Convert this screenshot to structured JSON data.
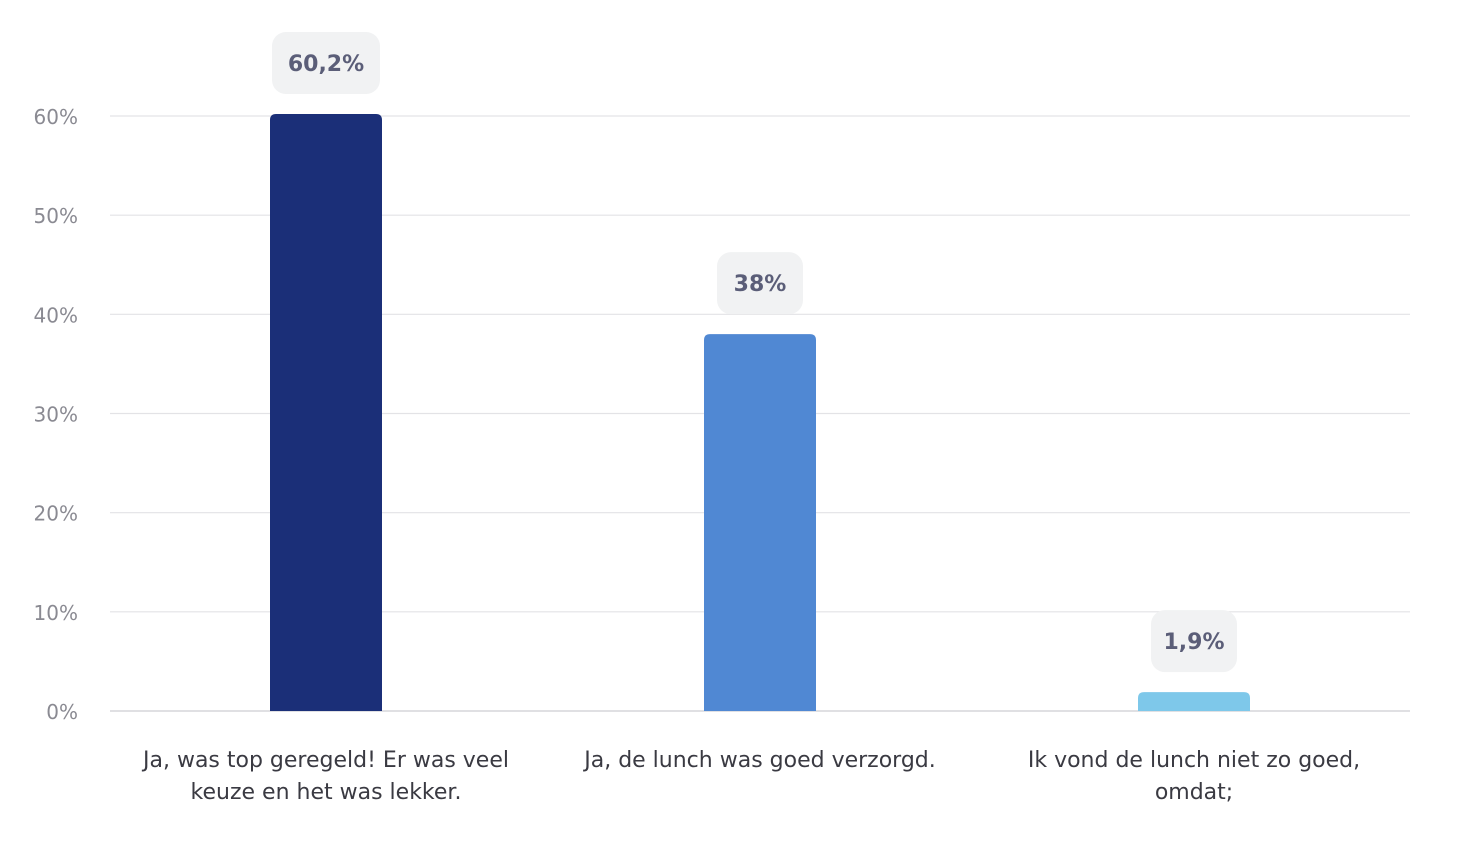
{
  "chart_data": {
    "type": "bar",
    "categories": [
      [
        "Ja, was top geregeld! Er was veel",
        "keuze en het was lekker."
      ],
      [
        "Ja, de lunch was goed verzorgd."
      ],
      [
        "Ik vond de lunch niet zo goed,",
        "omdat;"
      ]
    ],
    "values": [
      60.2,
      38,
      1.9
    ],
    "data_labels": [
      "60,2%",
      "38%",
      "1,9%"
    ],
    "colors": [
      "#1b2f78",
      "#5088d3",
      "#7ec8ea"
    ],
    "y_ticks": [
      0,
      10,
      20,
      30,
      40,
      50,
      60
    ],
    "y_tick_labels": [
      "0%",
      "10%",
      "20%",
      "30%",
      "40%",
      "50%",
      "60%"
    ],
    "ylim": [
      0,
      60
    ],
    "grid": true,
    "grid_color": "#e3e3e6",
    "label_bubble_color": "#f1f2f3",
    "title": "",
    "xlabel": "",
    "ylabel": ""
  }
}
